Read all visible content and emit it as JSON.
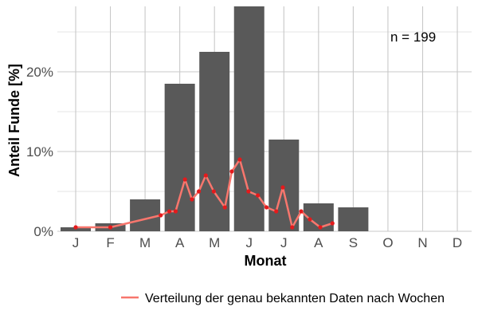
{
  "chart_data": {
    "type": "bar",
    "xlabel": "Monat",
    "ylabel": "Anteil Funde [%]",
    "categories": [
      "J",
      "F",
      "M",
      "A",
      "M",
      "J",
      "J",
      "A",
      "S",
      "O",
      "N",
      "D"
    ],
    "values": [
      0.5,
      1.0,
      4.0,
      18.5,
      22.5,
      28.2,
      11.5,
      3.5,
      3.0,
      0,
      0,
      0
    ],
    "ylim": [
      0,
      28.2
    ],
    "yticks": [
      0,
      10,
      20
    ],
    "ytick_labels": [
      "0%",
      "10%",
      "20%"
    ],
    "annotation": "n = 199",
    "grid": true,
    "legend_position": "bottom",
    "colors": {
      "bars": "#595959",
      "line": "#f8766d",
      "points": "#e41a1c",
      "grid": "#c8c8c8"
    },
    "series": [
      {
        "name": "Verteilung der genau bekannten Daten nach Wochen",
        "type": "line",
        "x": [
          1.0,
          2.0,
          3.45,
          3.7,
          3.88,
          4.15,
          4.35,
          4.55,
          4.75,
          4.98,
          5.3,
          5.5,
          5.73,
          5.98,
          6.25,
          6.5,
          6.78,
          6.97,
          7.24,
          7.5,
          7.75,
          8.05,
          8.4
        ],
        "values": [
          0.5,
          0.5,
          2.0,
          2.5,
          2.5,
          6.5,
          4.0,
          5.0,
          7.0,
          5.0,
          3.0,
          7.5,
          9.0,
          5.0,
          4.5,
          3.0,
          2.5,
          5.5,
          0.5,
          2.5,
          1.5,
          0.5,
          1.0
        ]
      }
    ]
  }
}
